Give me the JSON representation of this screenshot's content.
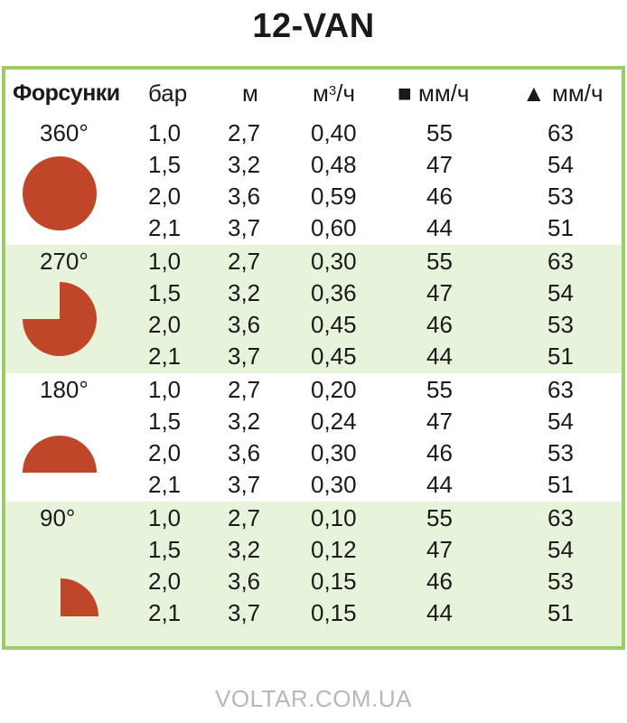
{
  "title": "12-VAN",
  "header": {
    "nozzles": "Форсунки",
    "bar": "бар",
    "m": "м",
    "flow_prefix": "м",
    "flow_sup": "3",
    "flow_suffix": "/ч",
    "square_symbol": "■",
    "square_unit": "мм/ч",
    "triangle_symbol": "▲",
    "triangle_unit": "мм/ч"
  },
  "groups": [
    {
      "angle": "360°",
      "rows": [
        {
          "bar": "1,0",
          "m": "2,7",
          "flow": "0,40",
          "sq": "55",
          "tri": "63"
        },
        {
          "bar": "1,5",
          "m": "3,2",
          "flow": "0,48",
          "sq": "47",
          "tri": "54"
        },
        {
          "bar": "2,0",
          "m": "3,6",
          "flow": "0,59",
          "sq": "46",
          "tri": "53"
        },
        {
          "bar": "2,1",
          "m": "3,7",
          "flow": "0,60",
          "sq": "44",
          "tri": "51"
        }
      ]
    },
    {
      "angle": "270°",
      "rows": [
        {
          "bar": "1,0",
          "m": "2,7",
          "flow": "0,30",
          "sq": "55",
          "tri": "63"
        },
        {
          "bar": "1,5",
          "m": "3,2",
          "flow": "0,36",
          "sq": "47",
          "tri": "54"
        },
        {
          "bar": "2,0",
          "m": "3,6",
          "flow": "0,45",
          "sq": "46",
          "tri": "53"
        },
        {
          "bar": "2,1",
          "m": "3,7",
          "flow": "0,45",
          "sq": "44",
          "tri": "51"
        }
      ]
    },
    {
      "angle": "180°",
      "rows": [
        {
          "bar": "1,0",
          "m": "2,7",
          "flow": "0,20",
          "sq": "55",
          "tri": "63"
        },
        {
          "bar": "1,5",
          "m": "3,2",
          "flow": "0,24",
          "sq": "47",
          "tri": "54"
        },
        {
          "bar": "2,0",
          "m": "3,6",
          "flow": "0,30",
          "sq": "46",
          "tri": "53"
        },
        {
          "bar": "2,1",
          "m": "3,7",
          "flow": "0,30",
          "sq": "44",
          "tri": "51"
        }
      ]
    },
    {
      "angle": "90°",
      "rows": [
        {
          "bar": "1,0",
          "m": "2,7",
          "flow": "0,10",
          "sq": "55",
          "tri": "63"
        },
        {
          "bar": "1,5",
          "m": "3,2",
          "flow": "0,12",
          "sq": "47",
          "tri": "54"
        },
        {
          "bar": "2,0",
          "m": "3,6",
          "flow": "0,15",
          "sq": "46",
          "tri": "53"
        },
        {
          "bar": "2,1",
          "m": "3,7",
          "flow": "0,15",
          "sq": "44",
          "tri": "51"
        }
      ]
    }
  ],
  "colors": {
    "border": "#9ccc65",
    "shaded_band": "#e8f3dc",
    "shape_fill": "#c0462a",
    "footer_text": "#b8b8b8"
  },
  "icons": [
    "circle-360-icon",
    "circle-270-icon",
    "semicircle-180-icon",
    "quarter-90-icon"
  ],
  "footer": "VOLTAR.COM.UA"
}
